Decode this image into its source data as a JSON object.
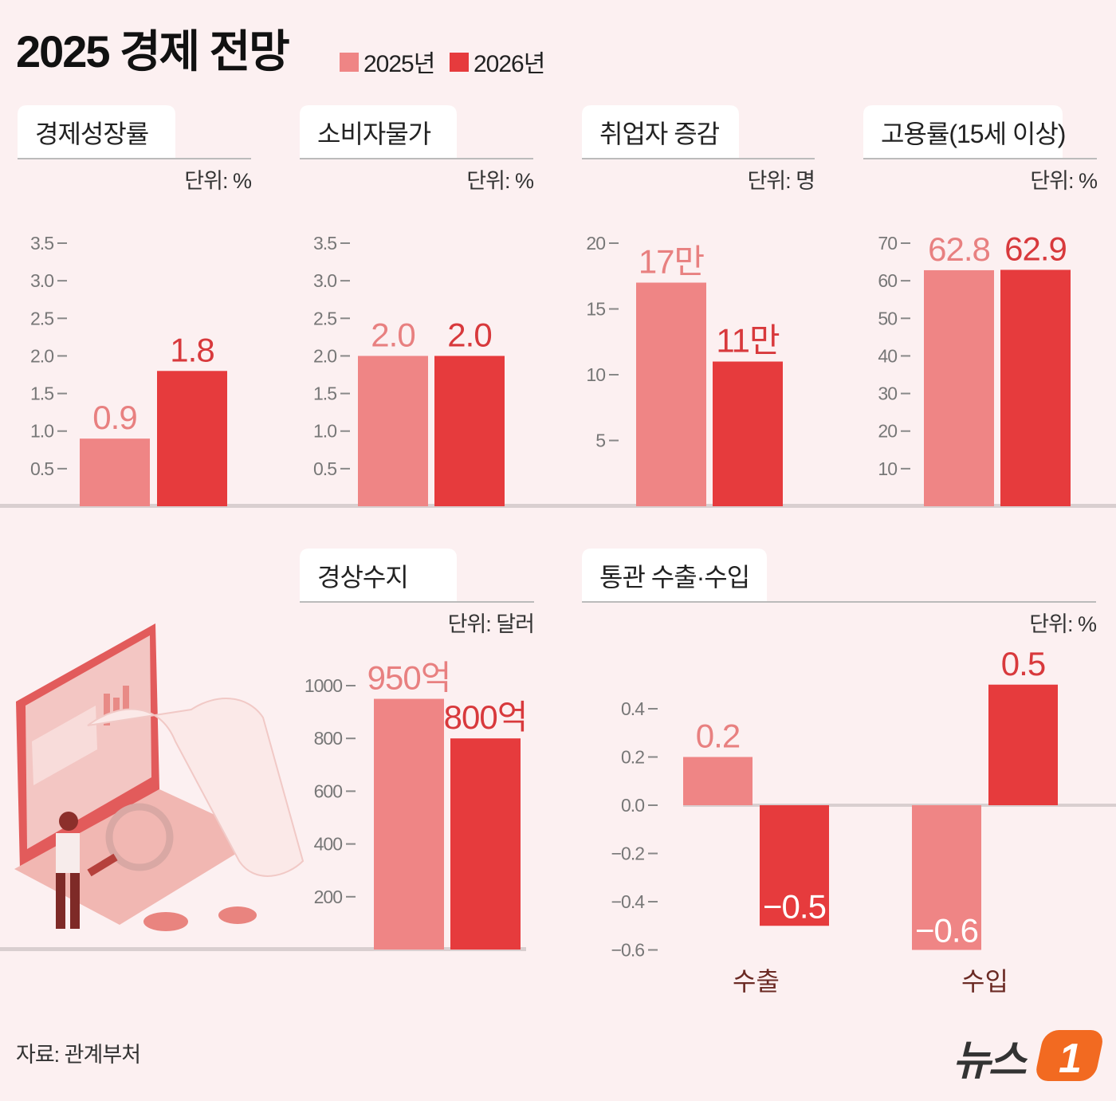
{
  "title": "2025 경제 전망",
  "legend": [
    {
      "label": "2025년",
      "color": "#ef8585"
    },
    {
      "label": "2026년",
      "color": "#e63b3d"
    }
  ],
  "colors": {
    "background": "#fcf0f1",
    "series_2025": "#ef8585",
    "series_2026": "#e63b3d",
    "label_2025": "#e88080",
    "label_2026": "#d8393c"
  },
  "chart_data": [
    {
      "type": "bar",
      "title": "경제성장률",
      "unit": "단위: %",
      "ticks": [
        "0.5",
        "1.0",
        "1.5",
        "2.0",
        "2.5",
        "3.0",
        "3.5"
      ],
      "tick_values": [
        0.5,
        1,
        1.5,
        2,
        2.5,
        3,
        3.5
      ],
      "ylim": [
        0,
        3.5
      ],
      "series": [
        {
          "name": "2025년",
          "values": [
            0.9
          ],
          "labels": [
            "0.9"
          ]
        },
        {
          "name": "2026년",
          "values": [
            1.8
          ],
          "labels": [
            "1.8"
          ]
        }
      ]
    },
    {
      "type": "bar",
      "title": "소비자물가",
      "unit": "단위: %",
      "ticks": [
        "0.5",
        "1.0",
        "1.5",
        "2.0",
        "2.5",
        "3.0",
        "3.5"
      ],
      "tick_values": [
        0.5,
        1,
        1.5,
        2,
        2.5,
        3,
        3.5
      ],
      "ylim": [
        0,
        3.5
      ],
      "series": [
        {
          "name": "2025년",
          "values": [
            2.0
          ],
          "labels": [
            "2.0"
          ]
        },
        {
          "name": "2026년",
          "values": [
            2.0
          ],
          "labels": [
            "2.0"
          ]
        }
      ]
    },
    {
      "type": "bar",
      "title": "취업자 증감",
      "unit": "단위: 명",
      "ticks": [
        "5",
        "10",
        "15",
        "20"
      ],
      "tick_values": [
        5,
        10,
        15,
        20
      ],
      "ylim": [
        0,
        20
      ],
      "series": [
        {
          "name": "2025년",
          "values": [
            17
          ],
          "labels": [
            "17만"
          ]
        },
        {
          "name": "2026년",
          "values": [
            11
          ],
          "labels": [
            "11만"
          ]
        }
      ]
    },
    {
      "type": "bar",
      "title": "고용률(15세 이상)",
      "unit": "단위: %",
      "ticks": [
        "10",
        "20",
        "30",
        "40",
        "50",
        "60",
        "70"
      ],
      "tick_values": [
        10,
        20,
        30,
        40,
        50,
        60,
        70
      ],
      "ylim": [
        0,
        70
      ],
      "series": [
        {
          "name": "2025년",
          "values": [
            62.8
          ],
          "labels": [
            "62.8"
          ]
        },
        {
          "name": "2026년",
          "values": [
            62.9
          ],
          "labels": [
            "62.9"
          ]
        }
      ]
    },
    {
      "type": "bar",
      "title": "경상수지",
      "unit": "단위: 달러",
      "ticks": [
        "200",
        "400",
        "600",
        "800",
        "1000"
      ],
      "tick_values": [
        200,
        400,
        600,
        800,
        1000
      ],
      "ylim": [
        0,
        1000
      ],
      "series": [
        {
          "name": "2025년",
          "values": [
            950
          ],
          "labels": [
            "950억"
          ]
        },
        {
          "name": "2026년",
          "values": [
            800
          ],
          "labels": [
            "800억"
          ]
        }
      ]
    },
    {
      "type": "bar",
      "title": "통관 수출·수입",
      "unit": "단위: %",
      "categories": [
        "수출",
        "수입"
      ],
      "ticks": [
        "−0.6",
        "−0.4",
        "−0.2",
        "0.0",
        "0.2",
        "0.4"
      ],
      "tick_values": [
        -0.6,
        -0.4,
        -0.2,
        0,
        0.2,
        0.4
      ],
      "ylim": [
        -0.6,
        0.5
      ],
      "series": [
        {
          "name": "2025년",
          "values": [
            0.2,
            -0.6
          ],
          "labels": [
            "0.2",
            "−0.6"
          ]
        },
        {
          "name": "2026년",
          "values": [
            -0.5,
            0.5
          ],
          "labels": [
            "−0.5",
            "0.5"
          ]
        }
      ]
    }
  ],
  "source": "자료: 관계부처",
  "logo": "뉴스1"
}
